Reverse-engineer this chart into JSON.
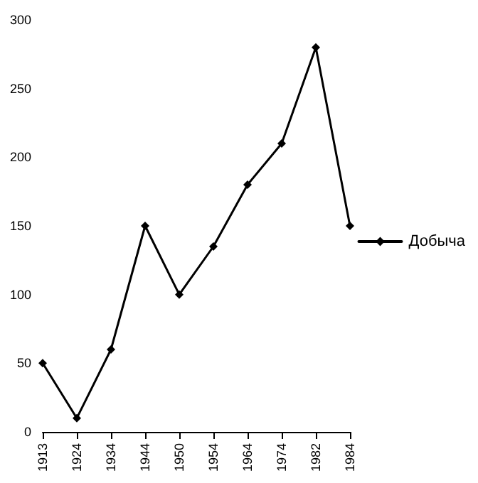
{
  "chart_data": {
    "type": "line",
    "categories": [
      "1913",
      "1924",
      "1934",
      "1944",
      "1950",
      "1954",
      "1964",
      "1974",
      "1982",
      "1984"
    ],
    "series": [
      {
        "name": "Добыча",
        "color": "#000000",
        "values": [
          50,
          10,
          60,
          150,
          100,
          135,
          180,
          210,
          280,
          150
        ]
      }
    ],
    "ylim": [
      0,
      300
    ],
    "yticks": [
      0,
      50,
      100,
      150,
      200,
      250,
      300
    ],
    "grid": false,
    "legend": "right",
    "marker": "diamond",
    "line_style": "solid"
  }
}
